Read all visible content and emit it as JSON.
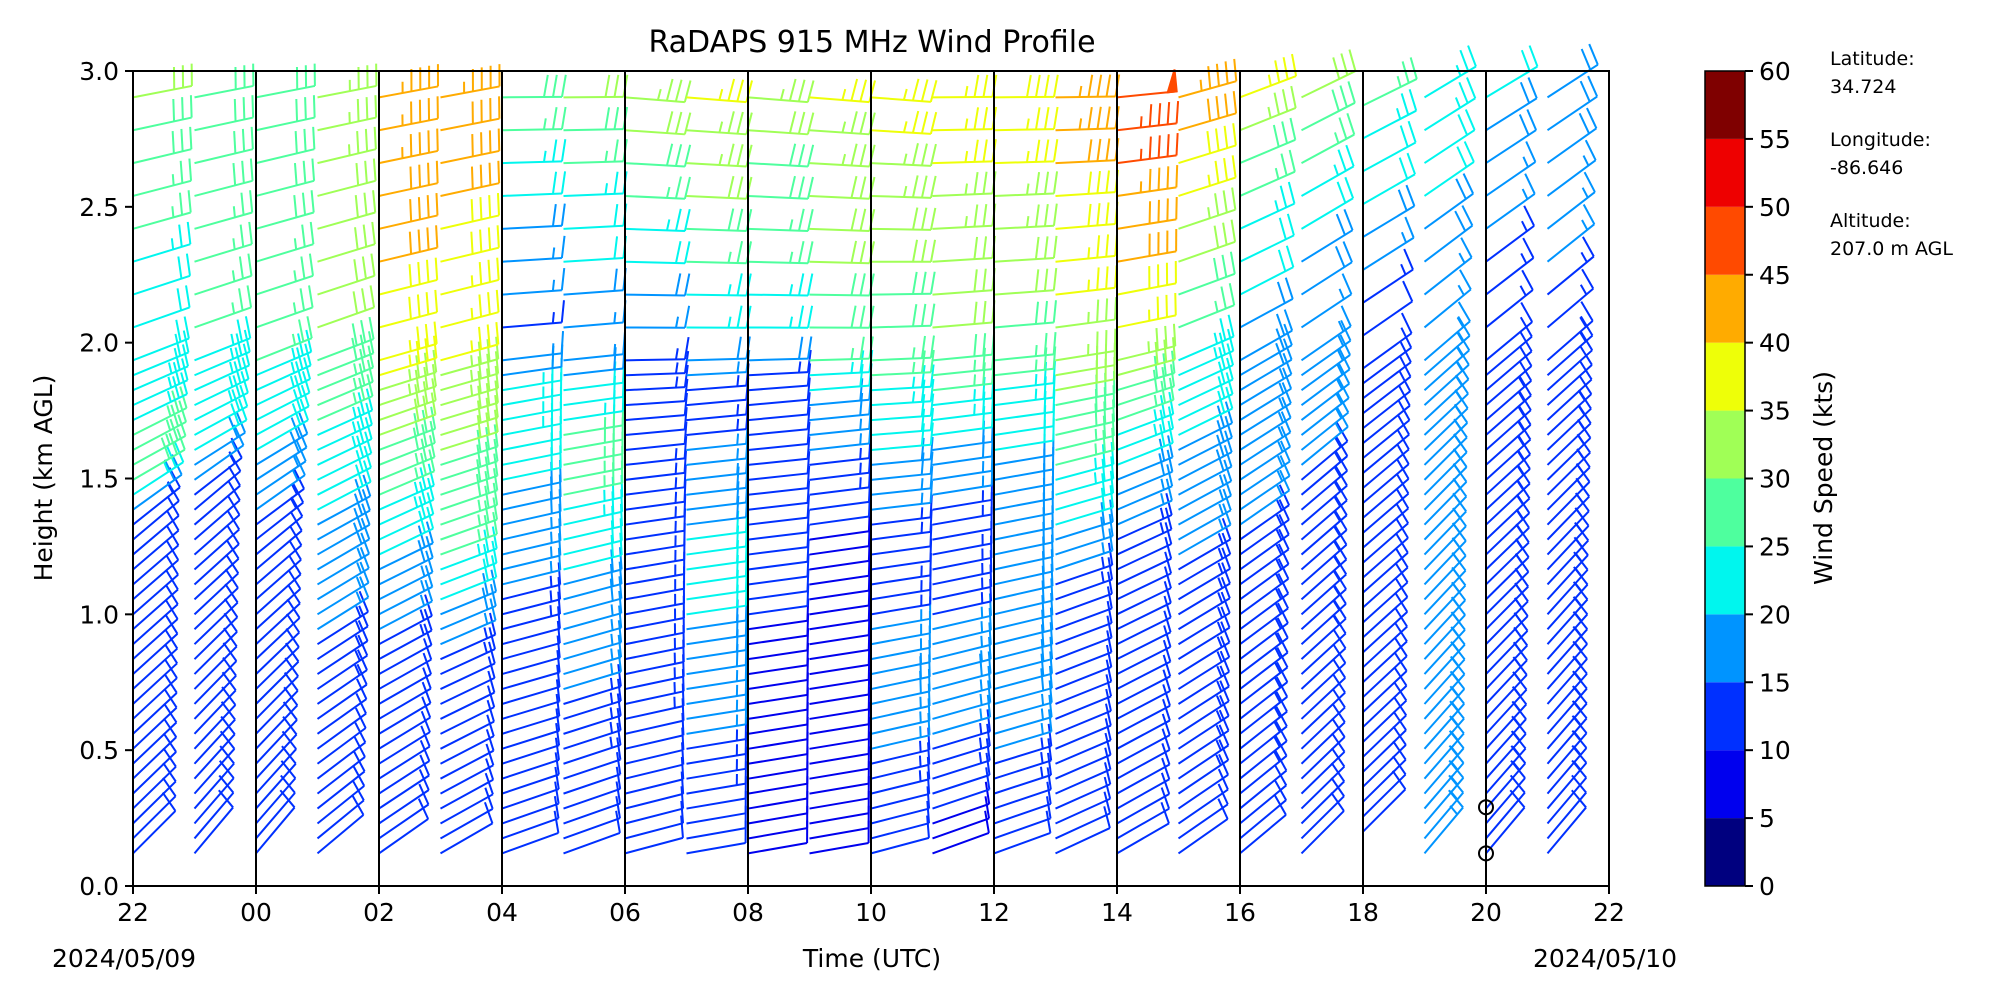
{
  "chart_data": {
    "type": "wind_barb_profile",
    "title": "RaDAPS 915 MHz Wind Profile",
    "xlabel": "Time (UTC)",
    "ylabel": "Height (km AGL)",
    "x_tick_labels": [
      "22",
      "00",
      "02",
      "04",
      "06",
      "08",
      "10",
      "12",
      "14",
      "16",
      "18",
      "20",
      "22"
    ],
    "x_range_hours_since_start": [
      0,
      24
    ],
    "date_start": "2024/05/09",
    "date_end": "2024/05/10",
    "ylim": [
      0.0,
      3.0
    ],
    "y_ticks": [
      "0.0",
      "0.5",
      "1.0",
      "1.5",
      "2.0",
      "2.5",
      "3.0"
    ],
    "colorbar": {
      "label": "Wind Speed (kts)",
      "bounds": [
        0,
        5,
        10,
        15,
        20,
        25,
        30,
        35,
        40,
        45,
        50,
        55,
        60
      ],
      "tick_labels": [
        "0",
        "5",
        "10",
        "15",
        "20",
        "25",
        "30",
        "35",
        "40",
        "45",
        "50",
        "55",
        "60"
      ],
      "colors": [
        "#00007f",
        "#0000ee",
        "#0030ff",
        "#0094ff",
        "#00f6ee",
        "#4eff9e",
        "#a0ff56",
        "#eeff08",
        "#ffab00",
        "#ff4a00",
        "#ee0000",
        "#7f0000"
      ]
    },
    "profiles_hours": [
      0.0,
      1.0,
      2.0,
      3.0,
      4.0,
      5.0,
      6.0,
      7.0,
      8.0,
      9.0,
      10.0,
      11.0,
      12.0,
      13.0,
      14.0,
      15.0,
      16.0,
      17.0,
      18.0,
      19.0,
      20.0,
      21.0,
      22.0,
      23.0
    ],
    "wind_profile_control_points": [
      [
        [
          0.12,
          10,
          225
        ],
        [
          1.3,
          12,
          230
        ],
        [
          1.5,
          28,
          240
        ],
        [
          2.0,
          20,
          250
        ],
        [
          3.0,
          32,
          260
        ]
      ],
      [
        [
          0.12,
          10,
          220
        ],
        [
          1.4,
          12,
          230
        ],
        [
          1.6,
          22,
          240
        ],
        [
          2.0,
          25,
          250
        ],
        [
          3.0,
          30,
          260
        ]
      ],
      [
        [
          0.12,
          10,
          220
        ],
        [
          1.2,
          12,
          230
        ],
        [
          1.6,
          20,
          240
        ],
        [
          2.0,
          26,
          250
        ],
        [
          3.0,
          30,
          260
        ]
      ],
      [
        [
          0.12,
          10,
          230
        ],
        [
          0.6,
          12,
          235
        ],
        [
          1.2,
          18,
          240
        ],
        [
          2.0,
          30,
          250
        ],
        [
          3.0,
          34,
          260
        ]
      ],
      [
        [
          0.12,
          10,
          235
        ],
        [
          0.65,
          10,
          240
        ],
        [
          1.3,
          22,
          245
        ],
        [
          2.0,
          38,
          255
        ],
        [
          3.0,
          45,
          260
        ]
      ],
      [
        [
          0.12,
          10,
          240
        ],
        [
          0.75,
          12,
          245
        ],
        [
          1.2,
          25,
          250
        ],
        [
          2.0,
          36,
          255
        ],
        [
          3.0,
          44,
          260
        ]
      ],
      [
        [
          0.12,
          10,
          250
        ],
        [
          0.9,
          12,
          255
        ],
        [
          1.8,
          25,
          260
        ],
        [
          2.0,
          12,
          265
        ],
        [
          3.0,
          30,
          270
        ]
      ],
      [
        [
          0.12,
          10,
          250
        ],
        [
          1.05,
          18,
          255
        ],
        [
          1.6,
          28,
          260
        ],
        [
          2.0,
          15,
          265
        ],
        [
          3.0,
          32,
          270
        ]
      ],
      [
        [
          0.12,
          10,
          255
        ],
        [
          1.1,
          15,
          260
        ],
        [
          1.7,
          12,
          265
        ],
        [
          2.0,
          14,
          270
        ],
        [
          3.0,
          35,
          275
        ]
      ],
      [
        [
          0.12,
          10,
          260
        ],
        [
          1.15,
          22,
          262
        ],
        [
          1.8,
          12,
          265
        ],
        [
          2.0,
          22,
          270
        ],
        [
          3.0,
          38,
          275
        ]
      ],
      [
        [
          0.12,
          8,
          260
        ],
        [
          1.0,
          10,
          262
        ],
        [
          1.8,
          10,
          265
        ],
        [
          2.0,
          22,
          270
        ],
        [
          3.0,
          34,
          275
        ]
      ],
      [
        [
          0.12,
          8,
          260
        ],
        [
          1.3,
          10,
          262
        ],
        [
          1.8,
          20,
          265
        ],
        [
          2.0,
          28,
          270
        ],
        [
          3.0,
          36,
          275
        ]
      ],
      [
        [
          0.12,
          10,
          255
        ],
        [
          0.7,
          18,
          258
        ],
        [
          1.2,
          12,
          262
        ],
        [
          2.0,
          28,
          268
        ],
        [
          3.0,
          38,
          275
        ]
      ],
      [
        [
          0.12,
          8,
          250
        ],
        [
          0.7,
          18,
          255
        ],
        [
          1.3,
          12,
          260
        ],
        [
          2.0,
          30,
          265
        ],
        [
          3.0,
          38,
          270
        ]
      ],
      [
        [
          0.12,
          10,
          250
        ],
        [
          0.7,
          18,
          255
        ],
        [
          1.5,
          18,
          260
        ],
        [
          2.0,
          28,
          265
        ],
        [
          3.0,
          40,
          270
        ]
      ],
      [
        [
          0.12,
          10,
          245
        ],
        [
          1.0,
          12,
          250
        ],
        [
          1.5,
          25,
          255
        ],
        [
          2.0,
          34,
          262
        ],
        [
          3.0,
          45,
          270
        ]
      ],
      [
        [
          0.12,
          10,
          240
        ],
        [
          1.2,
          12,
          245
        ],
        [
          1.7,
          25,
          250
        ],
        [
          2.0,
          36,
          258
        ],
        [
          3.0,
          50,
          265
        ]
      ],
      [
        [
          0.12,
          12,
          235
        ],
        [
          1.2,
          15,
          240
        ],
        [
          1.8,
          22,
          245
        ],
        [
          2.2,
          28,
          250
        ],
        [
          3.0,
          45,
          255
        ]
      ],
      [
        [
          0.12,
          12,
          230
        ],
        [
          1.3,
          15,
          235
        ],
        [
          1.9,
          18,
          240
        ],
        [
          2.4,
          22,
          245
        ],
        [
          3.0,
          40,
          250
        ]
      ],
      [
        [
          0.12,
          10,
          225
        ],
        [
          1.5,
          15,
          230
        ],
        [
          1.9,
          15,
          235
        ],
        [
          2.5,
          22,
          240
        ],
        [
          3.0,
          32,
          245
        ]
      ],
      [
        [
          0.2,
          10,
          225
        ],
        [
          1.5,
          12,
          230
        ],
        [
          2.0,
          10,
          235
        ],
        [
          2.5,
          20,
          240
        ],
        [
          3.0,
          28,
          245
        ]
      ],
      [
        [
          0.12,
          15,
          220
        ],
        [
          1.5,
          15,
          225
        ],
        [
          2.0,
          15,
          230
        ],
        [
          2.5,
          20,
          235
        ],
        [
          3.0,
          25,
          240
        ]
      ],
      [
        [
          0.12,
          12,
          220
        ],
        [
          1.0,
          15,
          225
        ],
        [
          1.9,
          12,
          230
        ],
        [
          2.5,
          16,
          235
        ],
        [
          3.0,
          22,
          240
        ]
      ],
      [
        [
          0.12,
          12,
          220
        ],
        [
          1.0,
          15,
          222
        ],
        [
          1.8,
          12,
          228
        ],
        [
          2.4,
          16,
          232
        ],
        [
          3.0,
          20,
          238
        ]
      ]
    ],
    "calm_markers": [
      {
        "hour": 22.0,
        "height_km": 0.12
      },
      {
        "hour": 22.0,
        "height_km": 0.29
      }
    ]
  },
  "station": {
    "latitude_label": "Latitude:",
    "latitude": "34.724",
    "longitude_label": "Longitude:",
    "longitude": "-86.646",
    "altitude_label": "Altitude:",
    "altitude": "207.0 m AGL"
  }
}
